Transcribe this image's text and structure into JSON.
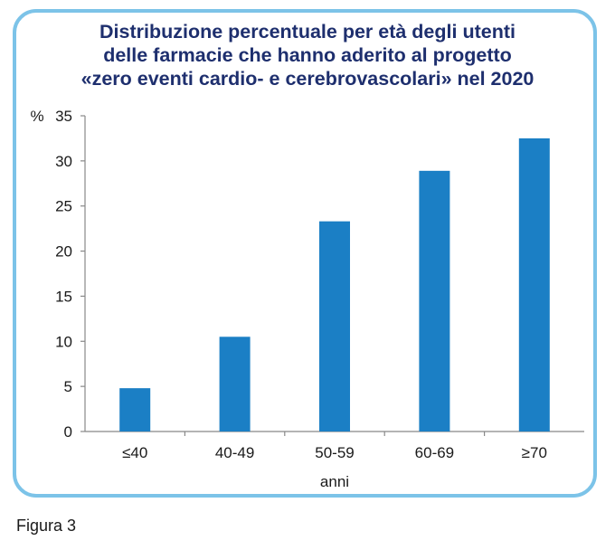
{
  "chart_data": {
    "type": "bar",
    "title_lines": [
      "Distribuzione percentuale per età degli utenti",
      "delle farmacie che hanno aderito al progetto",
      "«zero eventi cardio- e cerebrovascolari» nel 2020"
    ],
    "categories": [
      "≤40",
      "40-49",
      "50-59",
      "60-69",
      "≥70"
    ],
    "values": [
      4.8,
      10.5,
      23.3,
      28.9,
      32.5
    ],
    "xlabel": "anni",
    "ylabel": "%",
    "ylim": [
      0,
      35
    ],
    "yticks": [
      0,
      5,
      10,
      15,
      20,
      25,
      30,
      35
    ],
    "grid": false,
    "bar_color": "#1b7fc5"
  },
  "frame_color": "#7cc3e8",
  "title_color": "#1e2f6e",
  "caption": "Figura 3"
}
